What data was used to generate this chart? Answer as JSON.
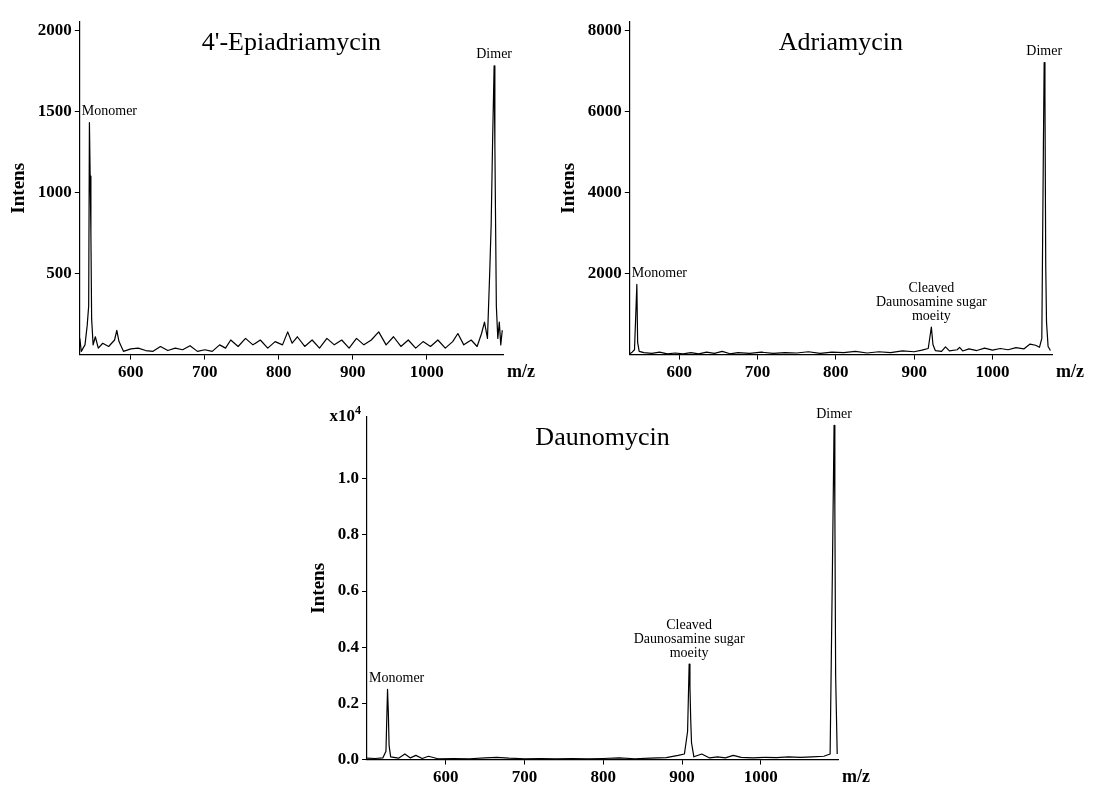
{
  "chart_data": [
    {
      "type": "line",
      "title": "4'-Epiadriamycin",
      "xlabel": "m/z",
      "ylabel": "Intens",
      "grid": false,
      "legend": false,
      "xlim": [
        531,
        1103
      ],
      "xticks": [
        600,
        700,
        800,
        900,
        1000
      ],
      "ylim": [
        0,
        2050
      ],
      "yticks": [
        500,
        1000,
        1500,
        2000
      ],
      "annotations": [
        {
          "text": "Monomer",
          "x": 544,
          "y": 1430
        },
        {
          "text": "Dimer",
          "x": 1091,
          "y": 1780
        }
      ],
      "series": [
        {
          "color": "#000000",
          "x": [
            531,
            533,
            538,
            541,
            543,
            544,
            545,
            546,
            547,
            549,
            552,
            556,
            562,
            570,
            578,
            581,
            584,
            590,
            600,
            610,
            620,
            630,
            640,
            650,
            660,
            670,
            680,
            690,
            700,
            710,
            720,
            728,
            735,
            745,
            755,
            765,
            775,
            785,
            795,
            805,
            812,
            818,
            825,
            835,
            845,
            855,
            865,
            875,
            885,
            895,
            905,
            915,
            925,
            935,
            945,
            955,
            965,
            975,
            985,
            995,
            1005,
            1015,
            1025,
            1035,
            1042,
            1050,
            1060,
            1068,
            1074,
            1078,
            1082,
            1085,
            1087,
            1089,
            1091,
            1092,
            1093,
            1094,
            1096,
            1098,
            1100,
            1102
          ],
          "values": [
            100,
            20,
            60,
            180,
            300,
            1430,
            1100,
            750,
            220,
            60,
            110,
            40,
            70,
            50,
            90,
            150,
            80,
            20,
            35,
            40,
            25,
            20,
            50,
            25,
            40,
            30,
            55,
            20,
            30,
            20,
            60,
            40,
            90,
            50,
            100,
            60,
            90,
            40,
            80,
            60,
            140,
            70,
            110,
            50,
            90,
            40,
            100,
            60,
            90,
            40,
            100,
            60,
            90,
            140,
            60,
            110,
            50,
            90,
            40,
            80,
            50,
            90,
            40,
            80,
            130,
            60,
            90,
            50,
            130,
            200,
            100,
            500,
            800,
            1330,
            1780,
            1300,
            800,
            300,
            100,
            200,
            60,
            150
          ]
        }
      ]
    },
    {
      "type": "line",
      "title": "Adriamycin",
      "xlabel": "m/z",
      "ylabel": "Intens",
      "grid": false,
      "legend": false,
      "xlim": [
        537,
        1076
      ],
      "xticks": [
        600,
        700,
        800,
        900,
        1000
      ],
      "ylim": [
        0,
        8200
      ],
      "yticks": [
        2000,
        4000,
        6000,
        8000
      ],
      "annotations": [
        {
          "text": "Monomer",
          "x": 546,
          "y": 1730
        },
        {
          "text": "Cleaved\nDaunosamine sugar\nmoeity",
          "x": 922,
          "y": 680
        },
        {
          "text": "Dimer",
          "x": 1066,
          "y": 7200
        }
      ],
      "series": [
        {
          "color": "#000000",
          "x": [
            537,
            540,
            543,
            546,
            547,
            549,
            555,
            565,
            575,
            585,
            595,
            605,
            615,
            625,
            635,
            645,
            655,
            665,
            675,
            690,
            705,
            720,
            735,
            750,
            765,
            780,
            795,
            810,
            825,
            840,
            855,
            870,
            885,
            900,
            910,
            918,
            922,
            924,
            927,
            935,
            940,
            945,
            955,
            958,
            962,
            970,
            980,
            990,
            1000,
            1010,
            1020,
            1030,
            1040,
            1048,
            1055,
            1060,
            1063,
            1065,
            1066,
            1067,
            1068,
            1069,
            1071,
            1074
          ],
          "values": [
            20,
            60,
            120,
            1730,
            300,
            80,
            50,
            30,
            60,
            20,
            40,
            20,
            50,
            20,
            60,
            30,
            80,
            20,
            50,
            30,
            60,
            30,
            50,
            40,
            70,
            30,
            60,
            50,
            80,
            40,
            70,
            50,
            90,
            70,
            110,
            150,
            680,
            250,
            100,
            80,
            190,
            90,
            120,
            180,
            90,
            140,
            100,
            160,
            110,
            150,
            120,
            170,
            140,
            260,
            230,
            180,
            400,
            5100,
            7200,
            6400,
            2200,
            800,
            200,
            100
          ]
        }
      ]
    },
    {
      "type": "line",
      "title": "Daunomycin",
      "xlabel": "m/z",
      "ylabel": "Intens",
      "grid": false,
      "legend": false,
      "xlim": [
        500,
        1098
      ],
      "xticks": [
        600,
        700,
        800,
        900,
        1000
      ],
      "ylim": [
        0,
        1.22
      ],
      "yticks": [
        {
          "value": 0,
          "label": "0.0"
        },
        0.2,
        0.4,
        0.6,
        0.8,
        {
          "value": 1,
          "label": "1.0"
        }
      ],
      "annotations": [
        "x10$^{4}$",
        {
          "text": "Monomer",
          "x": 526,
          "y": 0.25
        },
        {
          "text": "Cleaved\nDaunosamine sugar\nmoeity",
          "x": 909,
          "y": 0.34
        },
        {
          "text": "Dimer",
          "x": 1093,
          "y": 1.19
        }
      ],
      "series": [
        {
          "color": "#000000",
          "x": [
            500,
            510,
            520,
            524,
            526,
            527,
            528,
            530,
            540,
            548,
            555,
            562,
            570,
            578,
            590,
            610,
            630,
            650,
            665,
            680,
            700,
            720,
            740,
            760,
            780,
            800,
            820,
            840,
            860,
            880,
            895,
            903,
            907,
            909,
            910,
            911,
            912,
            915,
            925,
            935,
            945,
            955,
            965,
            975,
            990,
            1005,
            1020,
            1035,
            1050,
            1065,
            1080,
            1088,
            1091,
            1093,
            1094,
            1095,
            1097
          ],
          "values": [
            0.005,
            0.004,
            0.006,
            0.03,
            0.25,
            0.17,
            0.05,
            0.01,
            0.005,
            0.02,
            0.006,
            0.015,
            0.004,
            0.012,
            0.003,
            0.004,
            0.003,
            0.006,
            0.008,
            0.005,
            0.003,
            0.004,
            0.003,
            0.004,
            0.003,
            0.004,
            0.006,
            0.003,
            0.005,
            0.007,
            0.015,
            0.02,
            0.1,
            0.34,
            0.26,
            0.14,
            0.06,
            0.01,
            0.02,
            0.006,
            0.01,
            0.006,
            0.015,
            0.008,
            0.006,
            0.008,
            0.007,
            0.01,
            0.008,
            0.01,
            0.012,
            0.02,
            0.7,
            1.19,
            0.9,
            0.3,
            0.02
          ]
        }
      ]
    }
  ]
}
